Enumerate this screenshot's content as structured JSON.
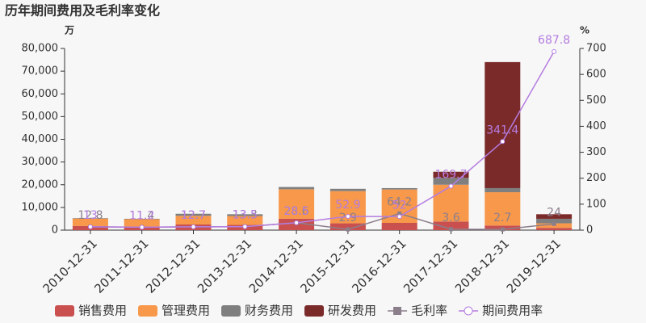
{
  "chart_data": {
    "type": "bar-line",
    "title": "历年期间费用及毛利率变化",
    "y_unit": "万",
    "y2_unit": "%",
    "categories": [
      "2010-12-31",
      "2011-12-31",
      "2012-12-31",
      "2013-12-31",
      "2014-12-31",
      "2015-12-31",
      "2016-12-31",
      "2017-12-31",
      "2018-12-31",
      "2019-12-31"
    ],
    "ylim": [
      0,
      80000
    ],
    "yticks": [
      0,
      {
        "value": 10000,
        "label": "10,000"
      },
      {
        "value": 20000,
        "label": "20,000"
      },
      {
        "value": 30000,
        "label": "30,000"
      },
      {
        "value": 40000,
        "label": "40,000"
      },
      {
        "value": 50000,
        "label": "50,000"
      },
      {
        "value": 60000,
        "label": "60,000"
      },
      {
        "value": 70000,
        "label": "70,000"
      },
      {
        "value": 80000,
        "label": "80,000"
      }
    ],
    "y2lim": [
      0,
      700
    ],
    "y2ticks": [
      0,
      100,
      200,
      300,
      400,
      500,
      600,
      700
    ],
    "series": [
      {
        "name": "销售费用",
        "color": "#c9504f",
        "kind": "bar",
        "values": [
          1800,
          1500,
          2500,
          2300,
          5000,
          3000,
          3200,
          3800,
          2000,
          1000
        ]
      },
      {
        "name": "管理费用",
        "color": "#f7984a",
        "kind": "bar",
        "values": [
          3300,
          3300,
          3800,
          3900,
          13000,
          14200,
          14700,
          16200,
          14700,
          2000
        ]
      },
      {
        "name": "财务费用",
        "color": "#7f7f7f",
        "kind": "bar",
        "values": [
          200,
          200,
          900,
          800,
          1000,
          1000,
          600,
          3000,
          1800,
          2000
        ]
      },
      {
        "name": "研发费用",
        "color": "#7b2a2a",
        "kind": "bar",
        "values": [
          0,
          0,
          0,
          0,
          0,
          0,
          0,
          2700,
          55500,
          2000
        ]
      },
      {
        "name": "毛利率",
        "color": "#8c7f8c",
        "kind": "line",
        "axis": "y2",
        "values": [
          12.8,
          11.4,
          12.7,
          13.3,
          28.6,
          2.9,
          64.2,
          3.6,
          2.7,
          24
        ]
      },
      {
        "name": "期间费用率",
        "color": "#b57de0",
        "kind": "line",
        "axis": "y2",
        "values": [
          13,
          11.2,
          12.7,
          13.5,
          28.5,
          52.9,
          52,
          169.7,
          341.4,
          687.8
        ]
      }
    ]
  }
}
